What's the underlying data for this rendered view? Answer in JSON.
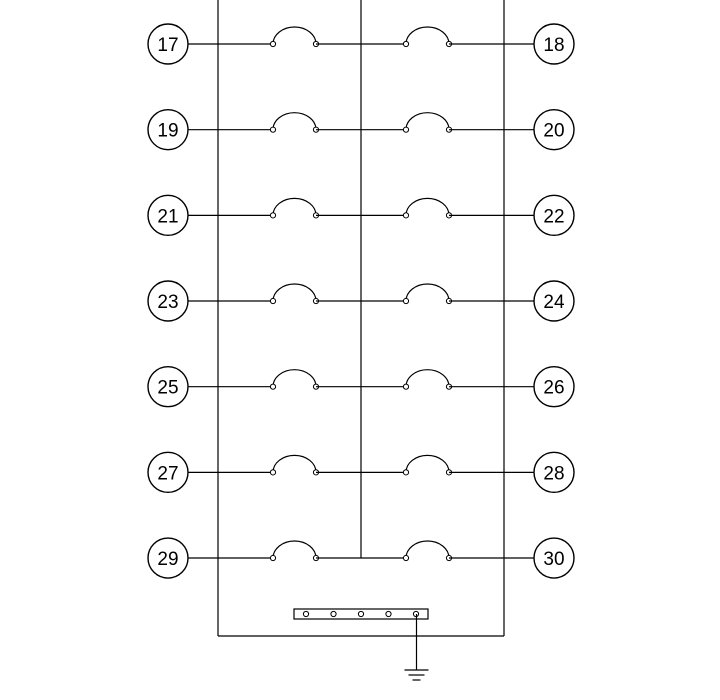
{
  "diagram": {
    "rows": [
      {
        "left": "17",
        "right": "18"
      },
      {
        "left": "19",
        "right": "20"
      },
      {
        "left": "21",
        "right": "22"
      },
      {
        "left": "23",
        "right": "24"
      },
      {
        "left": "25",
        "right": "26"
      },
      {
        "left": "27",
        "right": "28"
      },
      {
        "left": "29",
        "right": "30"
      }
    ],
    "ground_bar_terminals": 5,
    "ground_symbol": "ground-icon"
  }
}
